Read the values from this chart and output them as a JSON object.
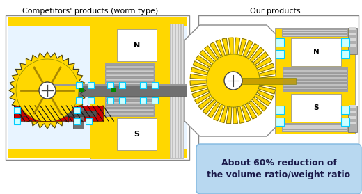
{
  "title_left": "Competitors' products (worm type)",
  "title_right": "Our products",
  "caption": "About 60% reduction of\nthe volume ratio/weight ratio",
  "bg_color": "#ffffff",
  "yellow": "#FFD700",
  "dark_yellow": "#B8860B",
  "red": "#CC0000",
  "dark_red": "#880000",
  "gray_shaft": "#707070",
  "gray_coil": "#A0A0A0",
  "gray_end": "#909090",
  "cyan_bearing": "#00CCFF",
  "cyan_bearing_fill": "#CCFFFF",
  "green_sq": "#008800",
  "blue_end": "#5599CC",
  "caption_bg": "#B8D8F0",
  "caption_border": "#80B8E0",
  "black": "#000000",
  "white": "#ffffff",
  "box_border": "#888888",
  "light_bg": "#E8F4FF"
}
